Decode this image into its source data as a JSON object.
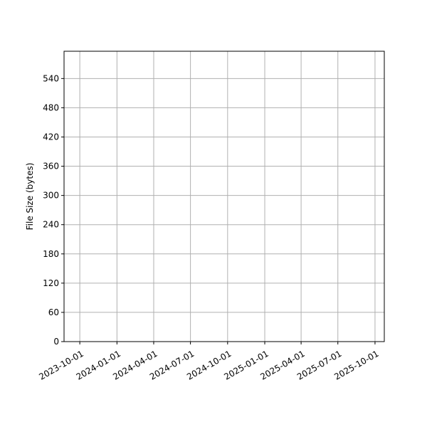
{
  "chart_data": {
    "type": "line",
    "title": "",
    "xlabel": "",
    "ylabel": "File Size (bytes)",
    "x_axis_type": "date",
    "xlim": [
      "2023-08-23",
      "2025-10-24"
    ],
    "ylim": [
      0,
      596
    ],
    "x_ticks": [
      "2023-10-01",
      "2024-01-01",
      "2024-04-01",
      "2024-07-01",
      "2024-10-01",
      "2025-01-01",
      "2025-04-01",
      "2025-07-01",
      "2025-10-01"
    ],
    "y_ticks": [
      0,
      60,
      120,
      180,
      240,
      300,
      360,
      420,
      480,
      540
    ],
    "grid": true,
    "series": [],
    "colors": {
      "grid": "#b0b0b0",
      "axis": "#000000"
    }
  }
}
